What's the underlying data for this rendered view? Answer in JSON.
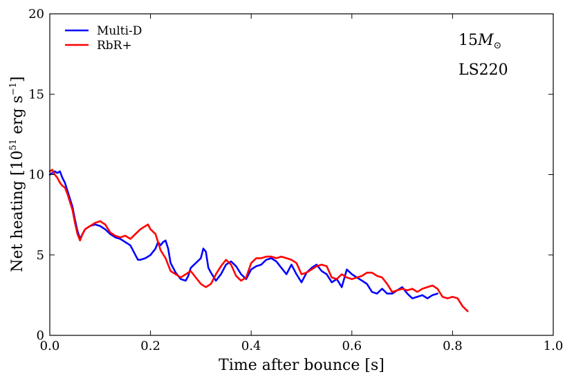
{
  "chart_data": {
    "type": "line",
    "xlabel": "Time after bounce [s]",
    "ylabel": "Net heating [10",
    "ylabel_exp": "51",
    "ylabel_unit": " erg s",
    "ylabel_unit_exp": "−1",
    "ylabel_close": "]",
    "xlim": [
      0.0,
      1.0
    ],
    "ylim": [
      0,
      20
    ],
    "xticks": [
      0.0,
      0.2,
      0.4,
      0.6,
      0.8,
      1.0
    ],
    "xtick_labels": [
      "0.0",
      "0.2",
      "0.4",
      "0.6",
      "0.8",
      "1.0"
    ],
    "yticks": [
      0,
      5,
      10,
      15,
      20
    ],
    "ytick_labels": [
      "0",
      "5",
      "10",
      "15",
      "20"
    ],
    "legend_position": "top-left",
    "annotations": {
      "mass_prefix": "15",
      "mass_symbol": "M",
      "mass_subscript": "⊙",
      "eos": "LS220"
    },
    "series": [
      {
        "name": "Multi-D",
        "color": "#0000ff",
        "x": [
          0.0,
          0.005,
          0.01,
          0.015,
          0.02,
          0.025,
          0.03,
          0.035,
          0.04,
          0.045,
          0.05,
          0.055,
          0.06,
          0.065,
          0.07,
          0.08,
          0.09,
          0.1,
          0.11,
          0.12,
          0.13,
          0.14,
          0.15,
          0.16,
          0.17,
          0.175,
          0.18,
          0.19,
          0.2,
          0.21,
          0.215,
          0.22,
          0.225,
          0.23,
          0.235,
          0.24,
          0.25,
          0.26,
          0.27,
          0.275,
          0.28,
          0.29,
          0.3,
          0.305,
          0.31,
          0.315,
          0.32,
          0.33,
          0.34,
          0.35,
          0.36,
          0.37,
          0.38,
          0.39,
          0.4,
          0.41,
          0.42,
          0.43,
          0.44,
          0.45,
          0.46,
          0.47,
          0.48,
          0.49,
          0.5,
          0.51,
          0.52,
          0.53,
          0.54,
          0.55,
          0.56,
          0.57,
          0.58,
          0.59,
          0.6,
          0.61,
          0.62,
          0.63,
          0.64,
          0.65,
          0.66,
          0.67,
          0.68,
          0.69,
          0.7,
          0.71,
          0.72,
          0.73,
          0.74,
          0.75,
          0.76,
          0.77
        ],
        "y": [
          10.0,
          10.1,
          10.2,
          10.1,
          10.2,
          9.8,
          9.5,
          9.0,
          8.5,
          8.0,
          7.2,
          6.5,
          6.0,
          6.3,
          6.6,
          6.8,
          6.9,
          6.8,
          6.6,
          6.3,
          6.1,
          6.0,
          5.8,
          5.6,
          5.0,
          4.7,
          4.7,
          4.8,
          5.0,
          5.4,
          5.8,
          5.6,
          5.8,
          5.9,
          5.4,
          4.5,
          3.9,
          3.5,
          3.4,
          3.7,
          4.2,
          4.5,
          4.8,
          5.4,
          5.2,
          4.2,
          3.9,
          3.4,
          3.8,
          4.4,
          4.6,
          4.3,
          3.8,
          3.5,
          4.1,
          4.3,
          4.4,
          4.7,
          4.8,
          4.6,
          4.2,
          3.8,
          4.4,
          3.8,
          3.3,
          3.9,
          4.2,
          4.4,
          4.0,
          3.8,
          3.3,
          3.5,
          3.0,
          4.1,
          3.8,
          3.6,
          3.4,
          3.2,
          2.7,
          2.6,
          2.9,
          2.6,
          2.6,
          2.8,
          3.0,
          2.6,
          2.3,
          2.4,
          2.5,
          2.3,
          2.5,
          2.6
        ]
      },
      {
        "name": "RbR+",
        "color": "#ff0000",
        "x": [
          0.0,
          0.005,
          0.01,
          0.015,
          0.02,
          0.025,
          0.03,
          0.035,
          0.04,
          0.045,
          0.05,
          0.055,
          0.06,
          0.065,
          0.07,
          0.08,
          0.09,
          0.1,
          0.11,
          0.12,
          0.13,
          0.14,
          0.15,
          0.16,
          0.17,
          0.18,
          0.19,
          0.195,
          0.2,
          0.21,
          0.22,
          0.23,
          0.24,
          0.25,
          0.26,
          0.27,
          0.28,
          0.29,
          0.3,
          0.31,
          0.32,
          0.33,
          0.34,
          0.35,
          0.36,
          0.37,
          0.38,
          0.39,
          0.4,
          0.41,
          0.42,
          0.43,
          0.44,
          0.45,
          0.46,
          0.47,
          0.48,
          0.49,
          0.5,
          0.51,
          0.52,
          0.53,
          0.54,
          0.55,
          0.56,
          0.57,
          0.58,
          0.59,
          0.6,
          0.61,
          0.62,
          0.63,
          0.64,
          0.65,
          0.66,
          0.67,
          0.68,
          0.69,
          0.7,
          0.71,
          0.72,
          0.73,
          0.74,
          0.75,
          0.76,
          0.77,
          0.78,
          0.79,
          0.8,
          0.81,
          0.82,
          0.83
        ],
        "y": [
          10.2,
          10.3,
          10.0,
          9.8,
          9.5,
          9.3,
          9.2,
          8.8,
          8.3,
          7.8,
          7.0,
          6.3,
          5.9,
          6.3,
          6.6,
          6.8,
          7.0,
          7.1,
          6.9,
          6.4,
          6.2,
          6.1,
          6.2,
          6.0,
          6.3,
          6.6,
          6.8,
          6.9,
          6.6,
          6.3,
          5.3,
          4.8,
          4.0,
          3.8,
          3.6,
          3.8,
          4.0,
          3.6,
          3.2,
          3.0,
          3.2,
          3.8,
          4.3,
          4.7,
          4.4,
          3.7,
          3.4,
          3.6,
          4.5,
          4.8,
          4.8,
          4.9,
          4.9,
          4.8,
          4.9,
          4.8,
          4.7,
          4.5,
          3.8,
          3.9,
          4.1,
          4.3,
          4.4,
          4.3,
          3.6,
          3.5,
          3.8,
          3.6,
          3.5,
          3.6,
          3.7,
          3.9,
          3.9,
          3.7,
          3.6,
          3.2,
          2.7,
          2.8,
          2.9,
          2.8,
          2.9,
          2.7,
          2.9,
          3.0,
          3.1,
          2.9,
          2.4,
          2.3,
          2.4,
          2.3,
          1.8,
          1.5
        ]
      }
    ]
  }
}
